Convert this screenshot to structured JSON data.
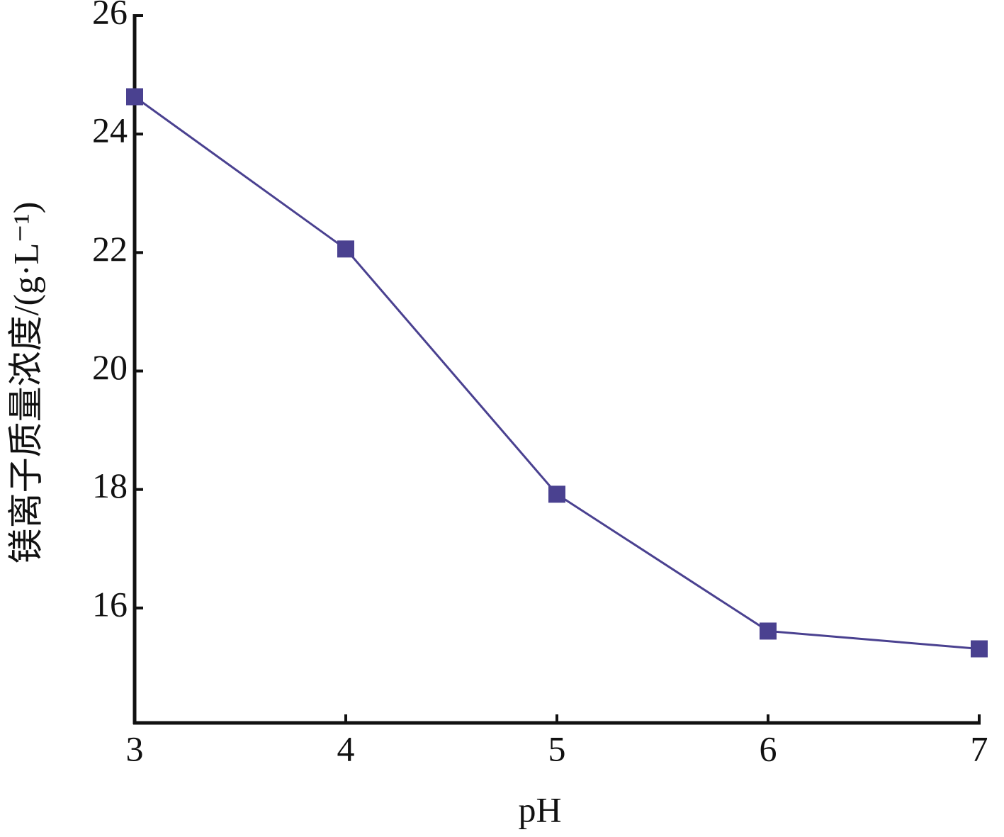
{
  "chart_data": {
    "type": "line",
    "x_label": "pH",
    "y_label": "镁离子质量浓度/(g·L⁻¹)",
    "x": [
      3,
      4,
      5,
      6,
      7
    ],
    "series": [
      {
        "color": "#4a4190",
        "values": [
          24.63,
          22.06,
          17.92,
          15.61,
          15.31
        ]
      }
    ],
    "xlim": [
      3,
      7
    ],
    "xticks": [
      3,
      4,
      5,
      6,
      7
    ],
    "ylim": [
      14.06,
      26
    ],
    "yticks": [
      16,
      18,
      20,
      22,
      24,
      26
    ],
    "grid": false
  }
}
